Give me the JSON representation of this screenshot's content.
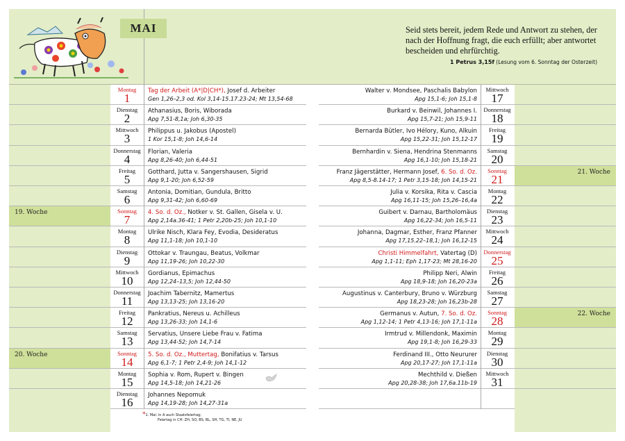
{
  "month": "MAI",
  "quote": {
    "text": "Seid stets bereit, jedem Rede und Antwort zu stehen, der nach der Hoffnung fragt, die euch erfüllt; aber antwortet bescheiden und ehrfürchtig.",
    "reference": "1 Petrus 3,15f",
    "reference_note": "(Lesung vom 6. Sonntag der Osterzeit)"
  },
  "colors": {
    "panel": "#e3edc8",
    "week_highlight": "#cfe09a",
    "holiday_red": "#d01818"
  },
  "illustration": "cow-with-flowers-icon",
  "left_days": [
    {
      "weekday": "Montag",
      "day": "1",
      "red": true,
      "highlight": "Tag der Arbeit (A*|D|CH*),",
      "names": " Josef d. Arbeiter",
      "readings": "Gen 1,26–2,3 od. Kol 3,14-15.17.23-24; Mt 13,54-68"
    },
    {
      "weekday": "Dienstag",
      "day": "2",
      "names": "Athanasius, Boris, Wiborada",
      "readings": "Apg 7,51-8,1a; Joh 6,30-35"
    },
    {
      "weekday": "Mittwoch",
      "day": "3",
      "names": "Philippus u. Jakobus (Apostel)",
      "readings": "1 Kor 15,1-8; Joh 14,6-14"
    },
    {
      "weekday": "Donnerstag",
      "day": "4",
      "names": "Florian, Valeria",
      "readings": "Apg 8,26-40; Joh 6,44-51"
    },
    {
      "weekday": "Freitag",
      "day": "5",
      "names": "Gotthard, Jutta v. Sangershausen, Sigrid",
      "readings": "Apg 9,1-20; Joh 6,52-59"
    },
    {
      "weekday": "Samstag",
      "day": "6",
      "names": "Antonia, Domitian, Gundula, Britto",
      "readings": "Apg 9,31-42; Joh 6,60-69"
    },
    {
      "weekday": "Sonntag",
      "day": "7",
      "red": true,
      "week": "19. Woche",
      "highlight": "4. So. d. Oz.,",
      "names": " Notker v. St. Gallen, Gisela v. U.",
      "readings": "Apg 2,14a.36-41; 1 Petr 2,20b-25; Joh 10,1-10"
    },
    {
      "weekday": "Montag",
      "day": "8",
      "names": "Ulrike Nisch, Klara Fey, Evodia, Desideratus",
      "readings": "Apg 11,1-18; Joh 10,1-10"
    },
    {
      "weekday": "Dienstag",
      "day": "9",
      "names": "Ottokar v. Traungau, Beatus, Volkmar",
      "readings": "Apg 11,19-26; Joh 10,22-30"
    },
    {
      "weekday": "Mittwoch",
      "day": "10",
      "names": "Gordianus, Epimachus",
      "readings": "Apg 12,24–13,5; Joh 12,44-50"
    },
    {
      "weekday": "Donnerstag",
      "day": "11",
      "names": "Joachim Tabernitz, Mamertus",
      "readings": "Apg 13,13-25; Joh 13,16-20"
    },
    {
      "weekday": "Freitag",
      "day": "12",
      "names": "Pankratius, Nereus u. Achilleus",
      "readings": "Apg 13,26-33; Joh 14,1-6"
    },
    {
      "weekday": "Samstag",
      "day": "13",
      "names": "Servatius, Unsere Liebe Frau v. Fatima",
      "readings": "Apg 13,44-52; Joh 14,7-14"
    },
    {
      "weekday": "Sonntag",
      "day": "14",
      "red": true,
      "week": "20. Woche",
      "highlight": "5. So. d. Oz., Muttertag,",
      "names": " Bonifatius v. Tarsus",
      "readings": "Apg 6,1-7; 1 Petr 2,4-9; Joh 14,1-12"
    },
    {
      "weekday": "Montag",
      "day": "15",
      "names": "Sophia v. Rom, Rupert v. Bingen",
      "readings": "Apg 14,5-18; Joh 14,21-26"
    },
    {
      "weekday": "Dienstag",
      "day": "16",
      "names": "Johannes Nepomuk",
      "readings": "Apg 14,19-28; Joh 14,27-31a"
    }
  ],
  "right_days": [
    {
      "weekday": "Mittwoch",
      "day": "17",
      "names": "Walter v. Mondsee, Paschalis Babylon",
      "readings": "Apg 15,1-6; Joh 15,1-8"
    },
    {
      "weekday": "Donnerstag",
      "day": "18",
      "names": "Burkard v. Beinwil, Johannes I.",
      "readings": "Apg 15,7-21; Joh 15,9-11"
    },
    {
      "weekday": "Freitag",
      "day": "19",
      "names": "Bernarda Bütler, Ivo Hélory, Kuno, Alkuin",
      "readings": "Apg 15,22-31; Joh 15,12-17"
    },
    {
      "weekday": "Samstag",
      "day": "20",
      "names": "Bernhardin v. Siena, Hendrina Stenmanns",
      "readings": "Apg 16,1-10; Joh 15,18-21"
    },
    {
      "weekday": "Sonntag",
      "day": "21",
      "red": true,
      "week": "21. Woche",
      "names": "Franz Jägerstätter, Hermann Josef, ",
      "highlight": "6. So. d. Oz.",
      "readings": "Apg 8,5-8.14-17; 1 Petr 3,15-18; Joh 14,15-21"
    },
    {
      "weekday": "Montag",
      "day": "22",
      "names": "Julia v. Korsika, Rita v. Cascia",
      "readings": "Apg 16,11-15; Joh 15,26–16,4a"
    },
    {
      "weekday": "Dienstag",
      "day": "23",
      "names": "Guibert v. Darnau, Bartholomäus",
      "readings": "Apg 16,22-34; Joh 16,5-11"
    },
    {
      "weekday": "Mittwoch",
      "day": "24",
      "names": "Johanna, Dagmar, Esther, Franz Pfanner",
      "readings": "Apg 17,15.22–18,1; Joh 16,12-15"
    },
    {
      "weekday": "Donnerstag",
      "day": "25",
      "red": true,
      "highlight": "Christi Himmelfahrt,",
      "names": " Vatertag (D)",
      "readings": "Apg 1,1-11; Eph 1,17-23; Mt 28,16-20",
      "highlight_first": true
    },
    {
      "weekday": "Freitag",
      "day": "26",
      "names": "Philipp Neri, Alwin",
      "readings": "Apg 18,9-18; Joh 16,20-23a"
    },
    {
      "weekday": "Samstag",
      "day": "27",
      "names": "Augustinus v. Canterbury, Bruno v. Würzburg",
      "readings": "Apg 18,23-28; Joh 16,23b-28"
    },
    {
      "weekday": "Sonntag",
      "day": "28",
      "red": true,
      "week": "22. Woche",
      "names": "Germanus v. Autun, ",
      "highlight": "7. So. d. Oz.",
      "readings": "Apg 1,12-14; 1 Petr 4,13-16; Joh 17,1-11a"
    },
    {
      "weekday": "Montag",
      "day": "29",
      "names": "Irmtrud v. Millendonk, Maximin",
      "readings": "Apg 19,1-8; Joh 16,29-33"
    },
    {
      "weekday": "Dienstag",
      "day": "30",
      "names": "Ferdinand III., Otto Neururer",
      "readings": "Apg 20,17-27; Joh 17,1-11a"
    },
    {
      "weekday": "Mittwoch",
      "day": "31",
      "names": "Mechthild v. Dießen",
      "readings": "Apg 20,28-38; Joh 17,6a.11b-19"
    }
  ],
  "footnote": {
    "marker": "*",
    "line1": "1. Mai: in A auch Staatsfeiertag;",
    "line2": "Feiertag in CH: ZH, SO, BS, BL, SH, TG, TI, NE, JU"
  }
}
